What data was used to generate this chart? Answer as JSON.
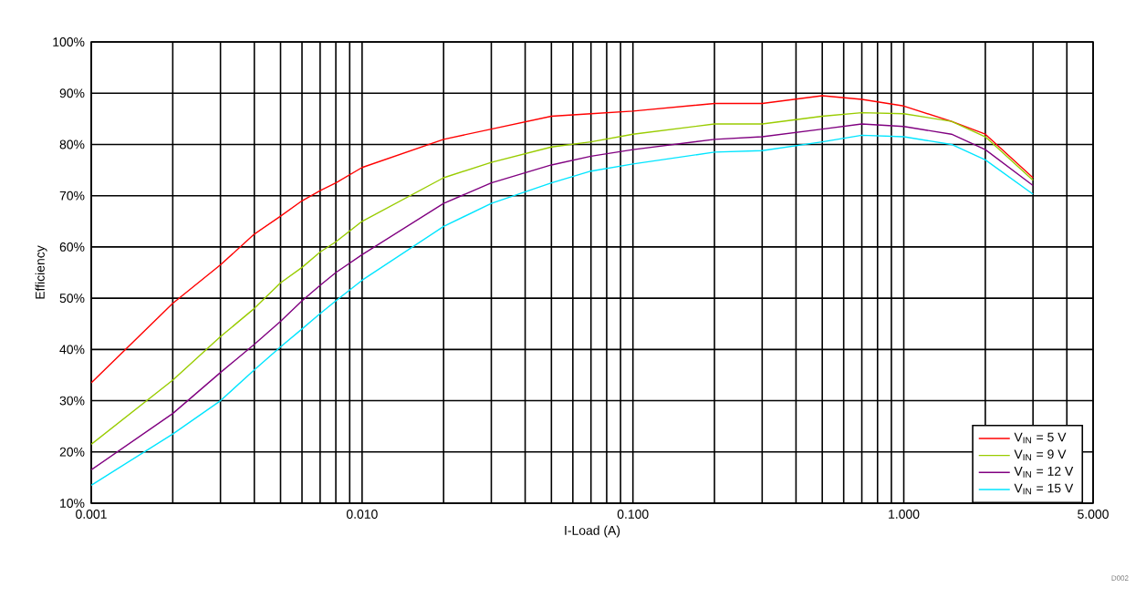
{
  "chart_data": {
    "type": "line",
    "xlabel": "I-Load (A)",
    "ylabel": "Efficiency",
    "log": "x",
    "grid": true,
    "legend": "bottom right",
    "line_style": "solid",
    "marker": "none",
    "x": [
      0.001,
      0.002,
      0.003,
      0.004,
      0.005,
      0.006,
      0.007,
      0.008,
      0.01,
      0.02,
      0.03,
      0.05,
      0.07,
      0.1,
      0.2,
      0.3,
      0.5,
      0.7,
      1.0,
      1.5,
      2,
      3
    ],
    "xlim": [
      0.001,
      5
    ],
    "ylim": [
      10,
      100
    ],
    "xticks": [
      {
        "value": 0.001,
        "label": "0.001"
      },
      {
        "value": 0.002,
        "label": null
      },
      {
        "value": 0.003,
        "label": null
      },
      {
        "value": 0.004,
        "label": null
      },
      {
        "value": 0.005,
        "label": null
      },
      {
        "value": 0.006,
        "label": null
      },
      {
        "value": 0.007,
        "label": null
      },
      {
        "value": 0.008,
        "label": null
      },
      {
        "value": 0.009,
        "label": null
      },
      {
        "value": 0.01,
        "label": "0.010"
      },
      {
        "value": 0.02,
        "label": null
      },
      {
        "value": 0.03,
        "label": null
      },
      {
        "value": 0.04,
        "label": null
      },
      {
        "value": 0.05,
        "label": null
      },
      {
        "value": 0.06,
        "label": null
      },
      {
        "value": 0.07,
        "label": null
      },
      {
        "value": 0.08,
        "label": null
      },
      {
        "value": 0.09,
        "label": null
      },
      {
        "value": 0.1,
        "label": "0.100"
      },
      {
        "value": 0.2,
        "label": null
      },
      {
        "value": 0.3,
        "label": null
      },
      {
        "value": 0.4,
        "label": null
      },
      {
        "value": 0.5,
        "label": null
      },
      {
        "value": 0.6,
        "label": null
      },
      {
        "value": 0.7,
        "label": null
      },
      {
        "value": 0.8,
        "label": null
      },
      {
        "value": 0.9,
        "label": null
      },
      {
        "value": 1,
        "label": "1.000"
      },
      {
        "value": 2,
        "label": null
      },
      {
        "value": 3,
        "label": null
      },
      {
        "value": 4,
        "label": null
      },
      {
        "value": 5,
        "label": "5.000"
      }
    ],
    "yticks": [
      {
        "value": 10,
        "label": "10%"
      },
      {
        "value": 20,
        "label": "20%"
      },
      {
        "value": 30,
        "label": "30%"
      },
      {
        "value": 40,
        "label": "40%"
      },
      {
        "value": 50,
        "label": "50%"
      },
      {
        "value": 60,
        "label": "60%"
      },
      {
        "value": 70,
        "label": "70%"
      },
      {
        "value": 80,
        "label": "80%"
      },
      {
        "value": 90,
        "label": "90%"
      },
      {
        "value": 100,
        "label": "100%"
      }
    ],
    "series": [
      {
        "name": "V$_{IN}$ = 5 V",
        "color": "#ff0000",
        "values": [
          33.5,
          49,
          56.5,
          62.5,
          66,
          69,
          71,
          72.5,
          75.5,
          81,
          83,
          85.5,
          86,
          86.5,
          88,
          88,
          89.5,
          88.8,
          87.5,
          84.5,
          82,
          73.5
        ]
      },
      {
        "name": "V$_{IN}$ = 9 V",
        "color": "#99cc00",
        "values": [
          21.5,
          34,
          42.5,
          48,
          53,
          56,
          59,
          61,
          65,
          73.5,
          76.5,
          79.5,
          80.5,
          82,
          84,
          84,
          85.5,
          86.2,
          86,
          84.5,
          81.5,
          73
        ]
      },
      {
        "name": "V$_{IN}$ = 12 V",
        "color": "#800080",
        "values": [
          16.5,
          27.5,
          35.5,
          41,
          45.5,
          49.5,
          52.5,
          55,
          58.5,
          68.5,
          72.5,
          76,
          77.7,
          79,
          81,
          81.5,
          83,
          84,
          83.5,
          82,
          79,
          72
        ]
      },
      {
        "name": "V$_{IN}$ = 15 V",
        "color": "#00e5ff",
        "values": [
          13.5,
          23.5,
          30,
          36,
          40.5,
          44,
          47,
          49.5,
          53.5,
          64,
          68.5,
          72.5,
          74.8,
          76.2,
          78.5,
          78.8,
          80.5,
          81.8,
          81.5,
          80,
          77,
          70.3
        ]
      }
    ],
    "annotations": [
      "D002"
    ]
  }
}
